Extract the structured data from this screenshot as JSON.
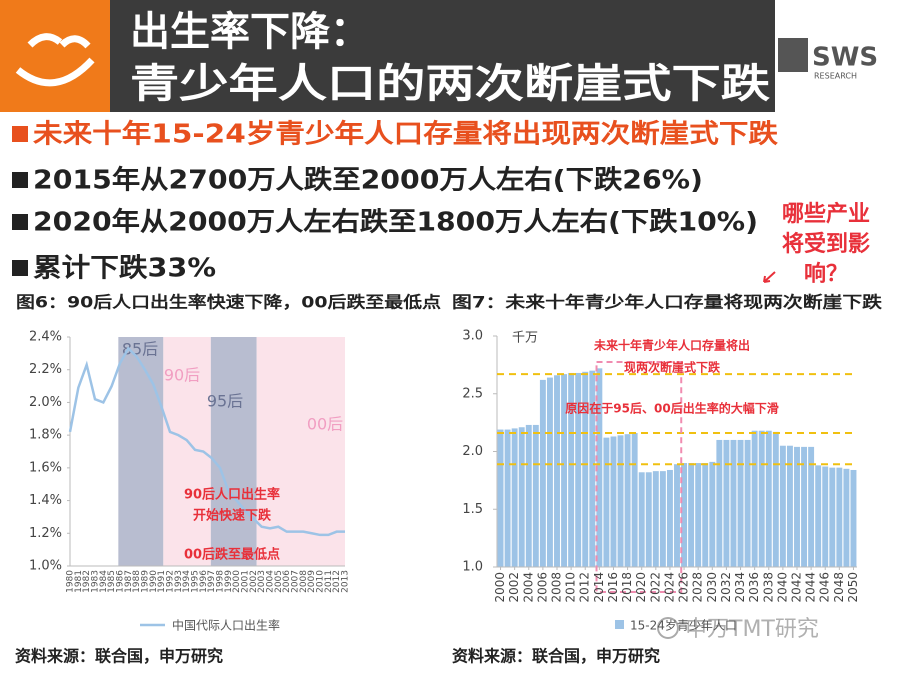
{
  "header": {
    "title_line1": "出生率下降：",
    "title_line2": "青少年人口的两次断崖式下跌",
    "logo": "SWS",
    "logo_sub": "RESEARCH"
  },
  "bullets": [
    "未来十年15-24岁青少年人口存量将出现两次断崖式下跌",
    "2015年从2700万人跌至2000万人左右(下跌26%)",
    "2020年从2000万人左右跌至1800万人左右(下跌10%)",
    "累计下跌33%"
  ],
  "callout": [
    "哪些产业",
    "将受到影",
    "响？"
  ],
  "watermark": "申万TMT研究",
  "chart_data": [
    {
      "type": "line",
      "title": "图6：90后人口出生率快速下降，00后跌至最低点",
      "x": [
        1980,
        1981,
        1982,
        1983,
        1984,
        1985,
        1986,
        1987,
        1988,
        1989,
        1990,
        1991,
        1992,
        1993,
        1994,
        1995,
        1996,
        1997,
        1998,
        1999,
        2000,
        2001,
        2002,
        2003,
        2004,
        2005,
        2006,
        2007,
        2008,
        2009,
        2010,
        2011,
        2012,
        2013
      ],
      "series": [
        {
          "name": "中国代际人口出生率",
          "color": "#9dc3e6",
          "values": [
            1.82,
            2.09,
            2.23,
            2.02,
            2.0,
            2.1,
            2.24,
            2.33,
            2.28,
            2.2,
            2.11,
            1.97,
            1.82,
            1.8,
            1.77,
            1.71,
            1.7,
            1.66,
            1.6,
            1.46,
            1.4,
            1.34,
            1.29,
            1.24,
            1.23,
            1.24,
            1.21,
            1.21,
            1.21,
            1.2,
            1.19,
            1.19,
            1.21,
            1.21
          ]
        }
      ],
      "xlim": [
        1980,
        2013
      ],
      "ylim": [
        1.0,
        2.4
      ],
      "yticks": [
        {
          "value": 1.0,
          "label": "1.0%"
        },
        {
          "value": 1.2,
          "label": "1.2%"
        },
        {
          "value": 1.4,
          "label": "1.4%"
        },
        {
          "value": 1.6,
          "label": "1.6%"
        },
        {
          "value": 1.8,
          "label": "1.8%"
        },
        {
          "value": 2.0,
          "label": "2.0%"
        },
        {
          "value": 2.2,
          "label": "2.2%"
        },
        {
          "value": 2.4,
          "label": "2.4%"
        }
      ],
      "bands": [
        {
          "label": "85后",
          "from": 1985.8,
          "to": 1991.2,
          "color": "#b8bdd0",
          "text_color": "#6a7393"
        },
        {
          "label": "90后",
          "from": 1991.2,
          "to": 1996.9,
          "color": "#fbe3ea",
          "text_color": "#f19ec2"
        },
        {
          "label": "95后",
          "from": 1996.9,
          "to": 2002.4,
          "color": "#b8bdd0",
          "text_color": "#6a7393"
        },
        {
          "label": "00后",
          "from": 2002.4,
          "to": 2013,
          "color": "#fbe3ea",
          "text_color": "#f19ec2"
        }
      ],
      "annotations": [
        "90后人口出生率",
        "开始快速下跌",
        "00后跌至最低点"
      ],
      "source": "资料来源：联合国，申万研究"
    },
    {
      "type": "bar",
      "title": "图7：未来十年青少年人口存量将现两次断崖下跌",
      "y_label": "千万",
      "x": [
        2000,
        2001,
        2002,
        2003,
        2004,
        2005,
        2006,
        2007,
        2008,
        2009,
        2010,
        2011,
        2012,
        2013,
        2014,
        2015,
        2016,
        2017,
        2018,
        2019,
        2020,
        2021,
        2022,
        2023,
        2024,
        2025,
        2026,
        2027,
        2028,
        2029,
        2030,
        2031,
        2032,
        2033,
        2034,
        2035,
        2036,
        2037,
        2038,
        2039,
        2040,
        2041,
        2042,
        2043,
        2044,
        2045,
        2046,
        2047,
        2048,
        2049,
        2050
      ],
      "series": [
        {
          "name": "15-24岁青少年人口",
          "color": "#9dc3e6",
          "values": [
            2.19,
            2.19,
            2.2,
            2.21,
            2.23,
            2.23,
            2.62,
            2.64,
            2.66,
            2.67,
            2.68,
            2.68,
            2.69,
            2.7,
            2.72,
            2.12,
            2.13,
            2.14,
            2.15,
            2.16,
            1.82,
            1.82,
            1.83,
            1.83,
            1.84,
            1.89,
            1.9,
            1.9,
            1.9,
            1.9,
            1.91,
            2.1,
            2.1,
            2.1,
            2.1,
            2.1,
            2.18,
            2.18,
            2.18,
            2.17,
            2.05,
            2.05,
            2.04,
            2.04,
            2.04,
            1.88,
            1.87,
            1.86,
            1.86,
            1.85,
            1.84
          ]
        }
      ],
      "xlim": [
        1999.5,
        2050.5
      ],
      "xticks": [
        2000,
        2002,
        2004,
        2006,
        2008,
        2010,
        2012,
        2014,
        2016,
        2018,
        2020,
        2022,
        2024,
        2026,
        2028,
        2030,
        2032,
        2034,
        2036,
        2038,
        2040,
        2042,
        2044,
        2046,
        2048,
        2050
      ],
      "ylim": [
        1.0,
        3.0
      ],
      "yticks": [
        {
          "value": 1.0,
          "label": "1.0"
        },
        {
          "value": 1.5,
          "label": "1.5"
        },
        {
          "value": 2.0,
          "label": "2.0"
        },
        {
          "value": 2.5,
          "label": "2.5"
        },
        {
          "value": 3.0,
          "label": "3.0"
        }
      ],
      "reference_lines": [
        2.67,
        2.16,
        1.89
      ],
      "highlight": [
        2013.6,
        2025.6
      ],
      "annotations": [
        "未来十年青少年人口存量将出",
        "现两次断崖式下跌",
        "原因在于95后、00后出生率的大幅下滑"
      ],
      "source": "资料来源：联合国，申万研究"
    }
  ]
}
